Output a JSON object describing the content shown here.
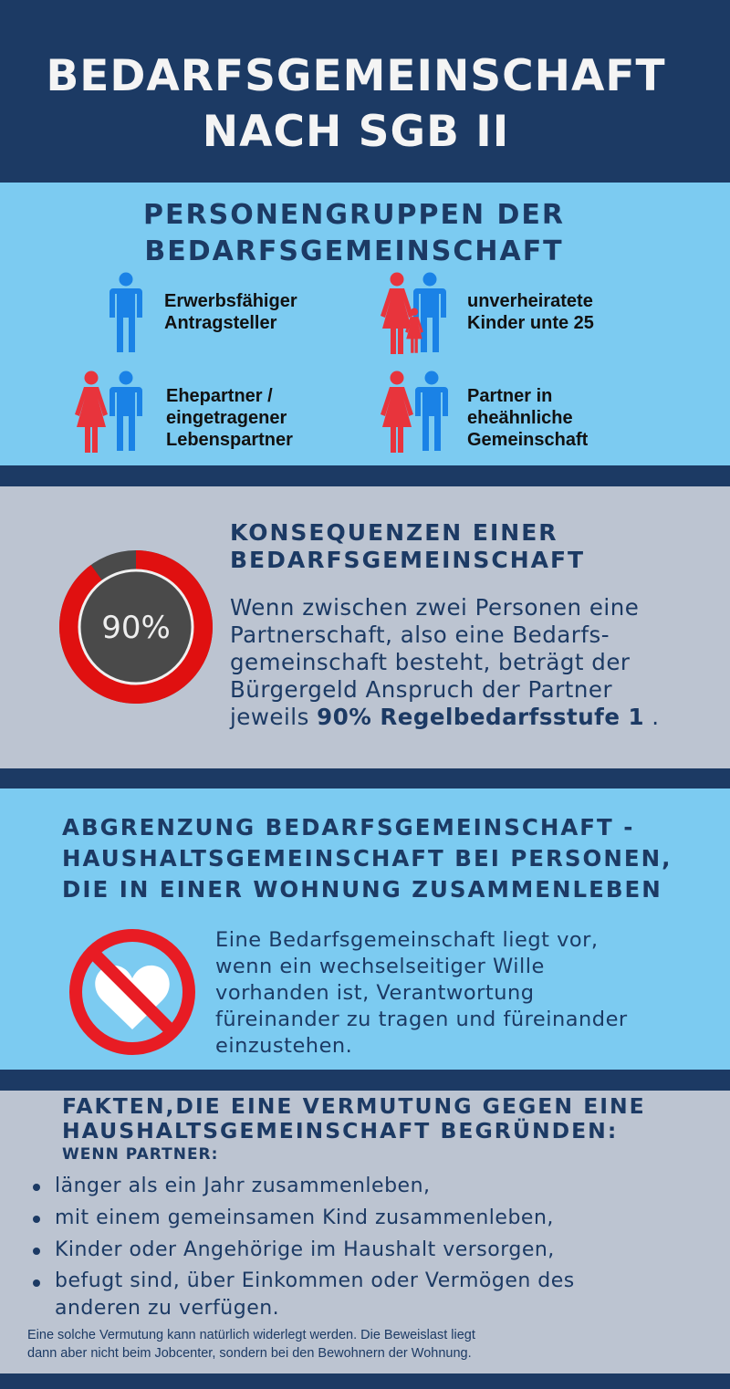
{
  "header": {
    "title_line1": "BEDARFSGEMEINSCHAFT",
    "title_line2": "NACH SGB II"
  },
  "section1": {
    "heading_line1": "PERSONENGRUPPEN DER",
    "heading_line2": "BEDARFSGEMEINSCHAFT",
    "groups": [
      {
        "label_lines": [
          "Erwerbsfähiger",
          "Antragsteller"
        ],
        "icon": "man-icon"
      },
      {
        "label_lines": [
          "unverheiratete",
          "Kinder unte 25"
        ],
        "icon": "family-with-child-icon"
      },
      {
        "label_lines": [
          "Ehepartner /",
          "eingetragener",
          "Lebenspartner"
        ],
        "icon": "couple-icon"
      },
      {
        "label_lines": [
          "Partner in",
          "eheähnliche",
          "Gemeinschaft"
        ],
        "icon": "couple-icon"
      }
    ],
    "colors": {
      "male": "#1a82e6",
      "female": "#e8343c"
    }
  },
  "section2": {
    "heading_line1": "KONSEQUENZEN EINER",
    "heading_line2": "BEDARFSGEMEINSCHAFT",
    "gauge": {
      "label": "90%",
      "value": 90,
      "fill_color": "#e01010",
      "track_color": "#4a4a4a"
    },
    "body_lines": [
      "Wenn zwischen zwei Personen eine",
      "Partnerschaft, also eine Bedarfs-",
      "gemeinschaft besteht, beträgt der",
      "Bürgergeld Anspruch der Partner"
    ],
    "body_last_prefix": "jeweils ",
    "body_last_bold": "90% Regelbedarfsstufe 1",
    "body_last_suffix": " ."
  },
  "section3": {
    "heading_lines": [
      "ABGRENZUNG BEDARFSGEMEINSCHAFT -",
      "HAUSHALTSGEMEINSCHAFT BEI PERSONEN,",
      "DIE IN EINER WOHNUNG ZUSAMMENLEBEN"
    ],
    "icon": "no-heart-icon",
    "body_lines": [
      "Eine Bedarfsgemeinschaft liegt vor,",
      "wenn ein wechselseitiger Wille",
      "vorhanden ist, Verantwortung",
      "füreinander zu tragen und füreinander",
      "einzustehen."
    ]
  },
  "section4": {
    "heading_lines": [
      "FAKTEN,DIE EINE VERMUTUNG GEGEN EINE",
      "HAUSHALTSGEMEINSCHAFT BEGRÜNDEN:"
    ],
    "subheading": "WENN PARTNER:",
    "bullets": [
      "länger als ein Jahr zusammenleben,",
      "mit einem gemeinsamen Kind zusammenleben,",
      "Kinder oder Angehörige im Haushalt versorgen,",
      "befugt sind, über Einkommen oder Vermögen des anderen zu verfügen."
    ],
    "footnote_lines": [
      "Eine solche Vermutung kann natürlich widerlegt werden. Die Beweislast liegt",
      "dann aber nicht beim Jobcenter, sondern bei den Bewohnern der Wohnung."
    ]
  }
}
